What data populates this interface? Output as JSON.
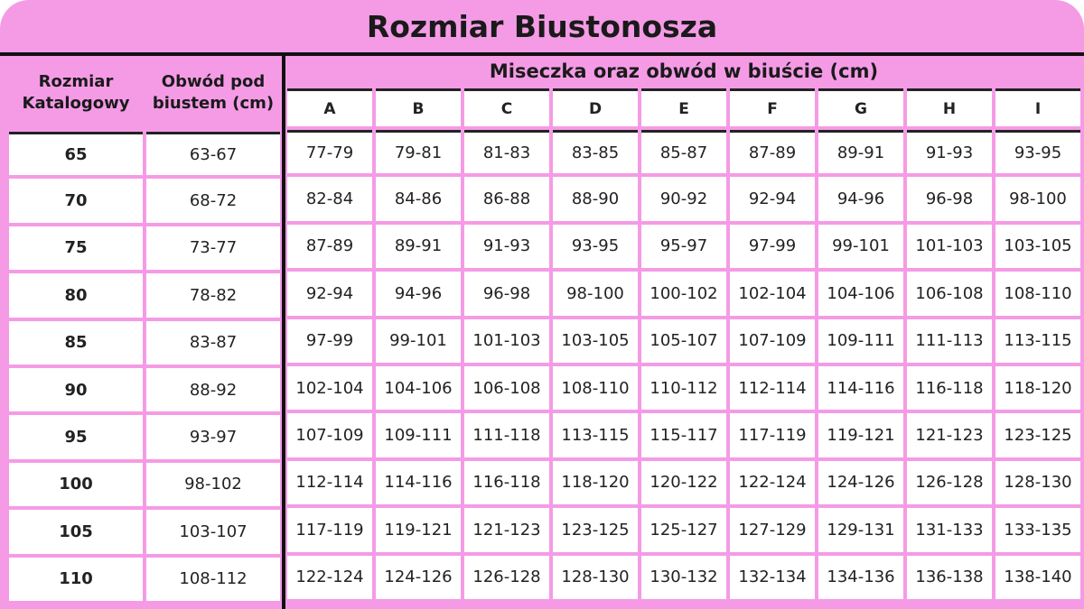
{
  "title": "Rozmiar Biustonosza",
  "headers": {
    "catalog_size": "Rozmiar Katalogowy",
    "underbust": "Obwód pod biustem (cm)",
    "cup_group": "Miseczka oraz obwód w biuście (cm)",
    "cups": [
      "A",
      "B",
      "C",
      "D",
      "E",
      "F",
      "G",
      "H",
      "I"
    ]
  },
  "rows": [
    {
      "size": "65",
      "underbust": "63-67",
      "cups": [
        "77-79",
        "79-81",
        "81-83",
        "83-85",
        "85-87",
        "87-89",
        "89-91",
        "91-93",
        "93-95"
      ]
    },
    {
      "size": "70",
      "underbust": "68-72",
      "cups": [
        "82-84",
        "84-86",
        "86-88",
        "88-90",
        "90-92",
        "92-94",
        "94-96",
        "96-98",
        "98-100"
      ]
    },
    {
      "size": "75",
      "underbust": "73-77",
      "cups": [
        "87-89",
        "89-91",
        "91-93",
        "93-95",
        "95-97",
        "97-99",
        "99-101",
        "101-103",
        "103-105"
      ]
    },
    {
      "size": "80",
      "underbust": "78-82",
      "cups": [
        "92-94",
        "94-96",
        "96-98",
        "98-100",
        "100-102",
        "102-104",
        "104-106",
        "106-108",
        "108-110"
      ]
    },
    {
      "size": "85",
      "underbust": "83-87",
      "cups": [
        "97-99",
        "99-101",
        "101-103",
        "103-105",
        "105-107",
        "107-109",
        "109-111",
        "111-113",
        "113-115"
      ]
    },
    {
      "size": "90",
      "underbust": "88-92",
      "cups": [
        "102-104",
        "104-106",
        "106-108",
        "108-110",
        "110-112",
        "112-114",
        "114-116",
        "116-118",
        "118-120"
      ]
    },
    {
      "size": "95",
      "underbust": "93-97",
      "cups": [
        "107-109",
        "109-111",
        "111-118",
        "113-115",
        "115-117",
        "117-119",
        "119-121",
        "121-123",
        "123-125"
      ]
    },
    {
      "size": "100",
      "underbust": "98-102",
      "cups": [
        "112-114",
        "114-116",
        "116-118",
        "118-120",
        "120-122",
        "122-124",
        "124-126",
        "126-128",
        "128-130"
      ]
    },
    {
      "size": "105",
      "underbust": "103-107",
      "cups": [
        "117-119",
        "119-121",
        "121-123",
        "123-125",
        "125-127",
        "127-129",
        "129-131",
        "131-133",
        "133-135"
      ]
    },
    {
      "size": "110",
      "underbust": "108-112",
      "cups": [
        "122-124",
        "124-126",
        "126-128",
        "128-130",
        "130-132",
        "132-134",
        "134-136",
        "136-138",
        "138-140"
      ]
    }
  ]
}
